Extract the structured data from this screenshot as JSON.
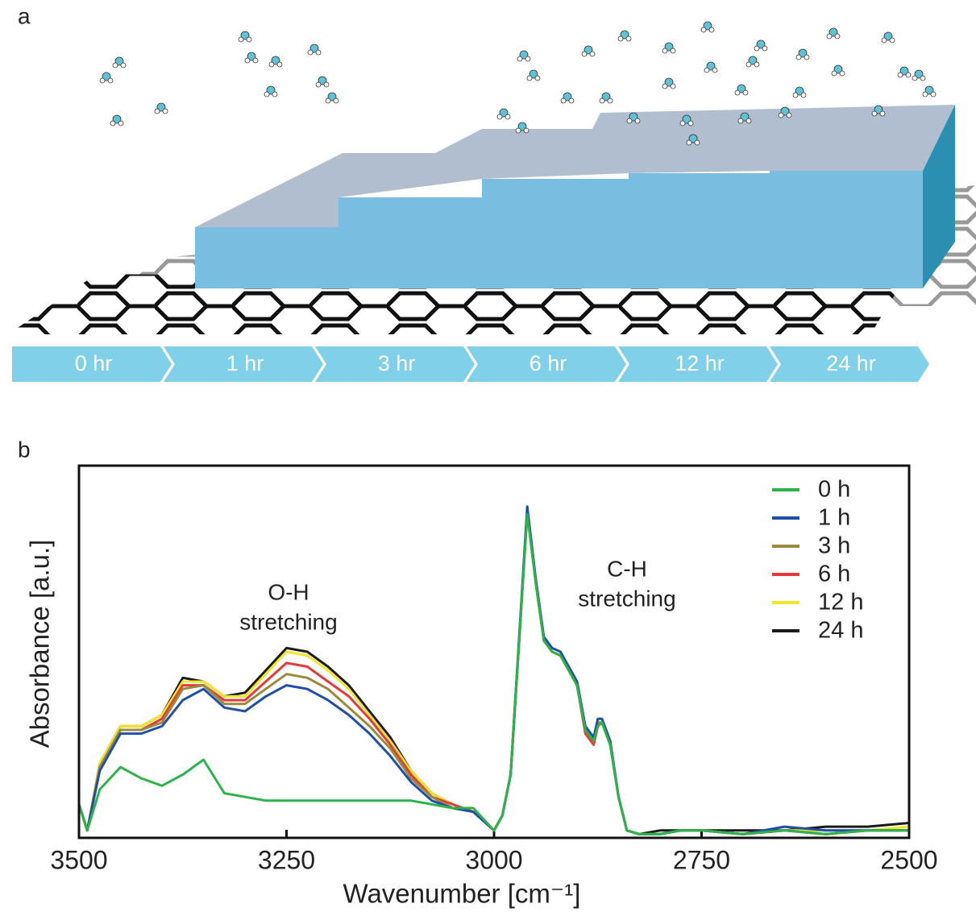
{
  "panels": {
    "a": "a",
    "b": "b"
  },
  "timeline": [
    "0 hr",
    "1 hr",
    "3 hr",
    "6 hr",
    "12 hr",
    "24 hr"
  ],
  "chart_data": {
    "type": "line",
    "xlabel": "Wavenumber [cm⁻¹]",
    "ylabel": "Absorbance [a.u.]",
    "annotations": [
      {
        "lines": [
          "O-H",
          "stretching"
        ]
      },
      {
        "lines": [
          "C-H",
          "stretching"
        ]
      }
    ],
    "x": [
      3500,
      3490,
      3475,
      3450,
      3425,
      3400,
      3375,
      3350,
      3325,
      3300,
      3275,
      3250,
      3225,
      3200,
      3175,
      3150,
      3125,
      3100,
      3075,
      3050,
      3025,
      3000,
      2990,
      2980,
      2970,
      2960,
      2950,
      2940,
      2930,
      2920,
      2910,
      2900,
      2890,
      2880,
      2875,
      2870,
      2860,
      2850,
      2840,
      2825,
      2800,
      2775,
      2750,
      2700,
      2650,
      2600,
      2550,
      2500
    ],
    "xlim": [
      3500,
      2500
    ],
    "xticks": [
      3500,
      3250,
      3000,
      2750,
      2500
    ],
    "ylim": [
      0,
      1
    ],
    "legend": "upper right",
    "series": [
      {
        "name": "0 h",
        "color": "#2db34a",
        "values": [
          0.09,
          0.02,
          0.13,
          0.19,
          0.16,
          0.14,
          0.17,
          0.21,
          0.12,
          0.11,
          0.1,
          0.1,
          0.1,
          0.1,
          0.1,
          0.1,
          0.1,
          0.1,
          0.09,
          0.08,
          0.08,
          0.02,
          0.06,
          0.17,
          0.52,
          0.87,
          0.69,
          0.53,
          0.5,
          0.49,
          0.45,
          0.41,
          0.29,
          0.26,
          0.3,
          0.31,
          0.25,
          0.11,
          0.02,
          0.01,
          0.01,
          0.02,
          0.02,
          0.01,
          0.02,
          0.01,
          0.02,
          0.02
        ]
      },
      {
        "name": "1 h",
        "color": "#1f4fa8",
        "values": [
          0.09,
          0.02,
          0.18,
          0.28,
          0.28,
          0.3,
          0.37,
          0.4,
          0.35,
          0.34,
          0.38,
          0.41,
          0.4,
          0.37,
          0.33,
          0.28,
          0.22,
          0.15,
          0.1,
          0.08,
          0.07,
          0.02,
          0.06,
          0.17,
          0.53,
          0.89,
          0.7,
          0.54,
          0.51,
          0.5,
          0.46,
          0.42,
          0.3,
          0.27,
          0.32,
          0.32,
          0.26,
          0.11,
          0.02,
          0.01,
          0.01,
          0.02,
          0.02,
          0.01,
          0.03,
          0.02,
          0.02,
          0.02
        ]
      },
      {
        "name": "3 h",
        "color": "#9a8a3c",
        "values": [
          0.09,
          0.02,
          0.19,
          0.29,
          0.29,
          0.31,
          0.4,
          0.41,
          0.36,
          0.36,
          0.4,
          0.44,
          0.43,
          0.4,
          0.35,
          0.3,
          0.24,
          0.16,
          0.11,
          0.08,
          0.07,
          0.02,
          0.06,
          0.17,
          0.52,
          0.88,
          0.69,
          0.53,
          0.5,
          0.49,
          0.45,
          0.41,
          0.29,
          0.26,
          0.31,
          0.31,
          0.25,
          0.11,
          0.02,
          0.01,
          0.01,
          0.02,
          0.02,
          0.01,
          0.02,
          0.01,
          0.02,
          0.02
        ]
      },
      {
        "name": "6 h",
        "color": "#e8393a",
        "values": [
          0.09,
          0.02,
          0.19,
          0.29,
          0.29,
          0.32,
          0.41,
          0.41,
          0.37,
          0.37,
          0.42,
          0.47,
          0.46,
          0.42,
          0.38,
          0.32,
          0.25,
          0.17,
          0.11,
          0.09,
          0.07,
          0.02,
          0.06,
          0.17,
          0.52,
          0.88,
          0.69,
          0.53,
          0.5,
          0.49,
          0.45,
          0.41,
          0.28,
          0.25,
          0.3,
          0.31,
          0.25,
          0.11,
          0.02,
          0.01,
          0.01,
          0.02,
          0.02,
          0.01,
          0.02,
          0.01,
          0.02,
          0.02
        ]
      },
      {
        "name": "12 h",
        "color": "#f2e52a",
        "values": [
          0.09,
          0.02,
          0.2,
          0.3,
          0.3,
          0.33,
          0.42,
          0.42,
          0.38,
          0.38,
          0.44,
          0.5,
          0.49,
          0.45,
          0.4,
          0.33,
          0.26,
          0.18,
          0.12,
          0.09,
          0.07,
          0.02,
          0.06,
          0.17,
          0.52,
          0.88,
          0.69,
          0.53,
          0.5,
          0.49,
          0.45,
          0.41,
          0.29,
          0.26,
          0.3,
          0.31,
          0.25,
          0.11,
          0.02,
          0.01,
          0.01,
          0.02,
          0.02,
          0.01,
          0.02,
          0.02,
          0.02,
          0.03
        ]
      },
      {
        "name": "24 h",
        "color": "#1a1a1a",
        "values": [
          0.09,
          0.02,
          0.2,
          0.3,
          0.3,
          0.33,
          0.43,
          0.42,
          0.38,
          0.39,
          0.45,
          0.51,
          0.5,
          0.46,
          0.41,
          0.34,
          0.27,
          0.18,
          0.12,
          0.09,
          0.07,
          0.02,
          0.06,
          0.17,
          0.52,
          0.88,
          0.69,
          0.53,
          0.5,
          0.49,
          0.45,
          0.41,
          0.29,
          0.26,
          0.3,
          0.31,
          0.25,
          0.11,
          0.02,
          0.01,
          0.02,
          0.02,
          0.02,
          0.02,
          0.02,
          0.03,
          0.03,
          0.04
        ]
      }
    ]
  }
}
